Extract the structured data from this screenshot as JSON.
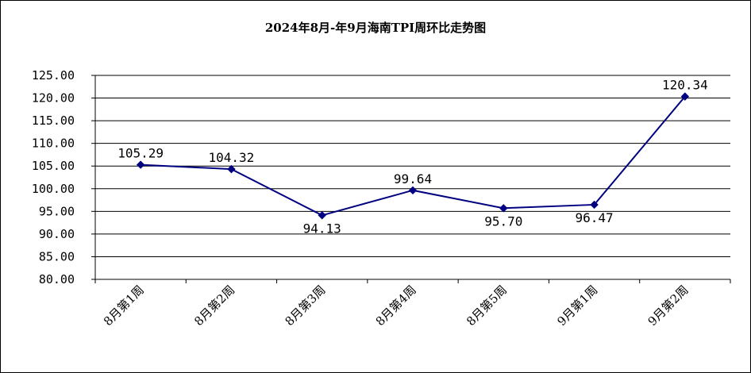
{
  "chart_data": {
    "type": "line",
    "title": "2024年8月-年9月海南TPI周环比走势图",
    "categories": [
      "8月第1周",
      "8月第2周",
      "8月第3周",
      "8月第4周",
      "8月第5周",
      "9月第1周",
      "9月第2周"
    ],
    "series": [
      {
        "values": [
          105.29,
          104.32,
          94.13,
          99.64,
          95.7,
          96.47,
          120.34
        ],
        "labels": [
          "105.29",
          "104.32",
          "94.13",
          "99.64",
          "95.70",
          "96.47",
          "120.34"
        ],
        "label_positions": [
          "above",
          "above",
          "below",
          "above",
          "below",
          "below",
          "above"
        ],
        "color": "#000080",
        "marker": "diamond"
      }
    ],
    "y_ticks": [
      "80.00",
      "85.00",
      "90.00",
      "95.00",
      "100.00",
      "105.00",
      "110.00",
      "115.00",
      "120.00",
      "125.00"
    ],
    "ylim": [
      80,
      125
    ],
    "grid": true,
    "legend": "none"
  }
}
